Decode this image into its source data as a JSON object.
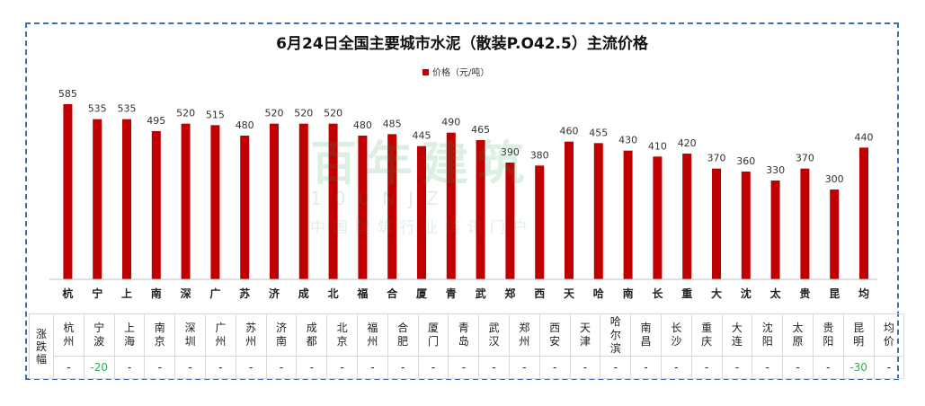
{
  "chart_data": {
    "type": "bar",
    "title": "6月24日全国主要城市水泥（散装P.O42.5）主流价格",
    "legend": {
      "label": "价格（元/吨）",
      "placement": "top",
      "color": "#c00000"
    },
    "bar_color": "#c00000",
    "ylim": [
      0,
      600
    ],
    "categories_short": [
      "杭",
      "宁",
      "上",
      "南",
      "深",
      "广",
      "苏",
      "济",
      "成",
      "北",
      "福",
      "合",
      "厦",
      "青",
      "武",
      "郑",
      "西",
      "天",
      "哈",
      "南",
      "长",
      "重",
      "大",
      "沈",
      "太",
      "贵",
      "昆",
      "均"
    ],
    "values": [
      585,
      535,
      535,
      495,
      520,
      515,
      480,
      520,
      520,
      520,
      480,
      485,
      445,
      490,
      465,
      390,
      380,
      460,
      455,
      430,
      410,
      420,
      370,
      360,
      330,
      370,
      300,
      440
    ],
    "value_labels": [
      "585",
      "535",
      "535",
      "495",
      "520",
      "515",
      "480",
      "520",
      "520",
      "520",
      "480",
      "485",
      "445",
      "490",
      "465",
      "390",
      "380",
      "460",
      "455",
      "430",
      "410",
      "420",
      "370",
      "360",
      "330",
      "370",
      "300",
      "440"
    ]
  },
  "table": {
    "header_label": "涨跌幅",
    "cities": [
      "杭州",
      "宁波",
      "上海",
      "南京",
      "深圳",
      "广州",
      "苏州",
      "济南",
      "成都",
      "北京",
      "福州",
      "合肥",
      "厦门",
      "青岛",
      "武汉",
      "郑州",
      "西安",
      "天津",
      "哈尔滨",
      "南昌",
      "长沙",
      "重庆",
      "大连",
      "沈阳",
      "太原",
      "贵阳",
      "昆明",
      "均价"
    ],
    "changes": [
      "-",
      "-20",
      "-",
      "-",
      "-",
      "-",
      "-",
      "-",
      "-",
      "-",
      "-",
      "-",
      "-",
      "-",
      "-",
      "-",
      "-",
      "-",
      "-",
      "-",
      "-",
      "-",
      "-",
      "-",
      "-",
      "-",
      "-30",
      "-"
    ],
    "highlight_color": "#2eae55"
  },
  "watermark": {
    "line1": "百年建筑",
    "line2": "100NJZ",
    "line3": "中国建筑行业资讯门户"
  }
}
